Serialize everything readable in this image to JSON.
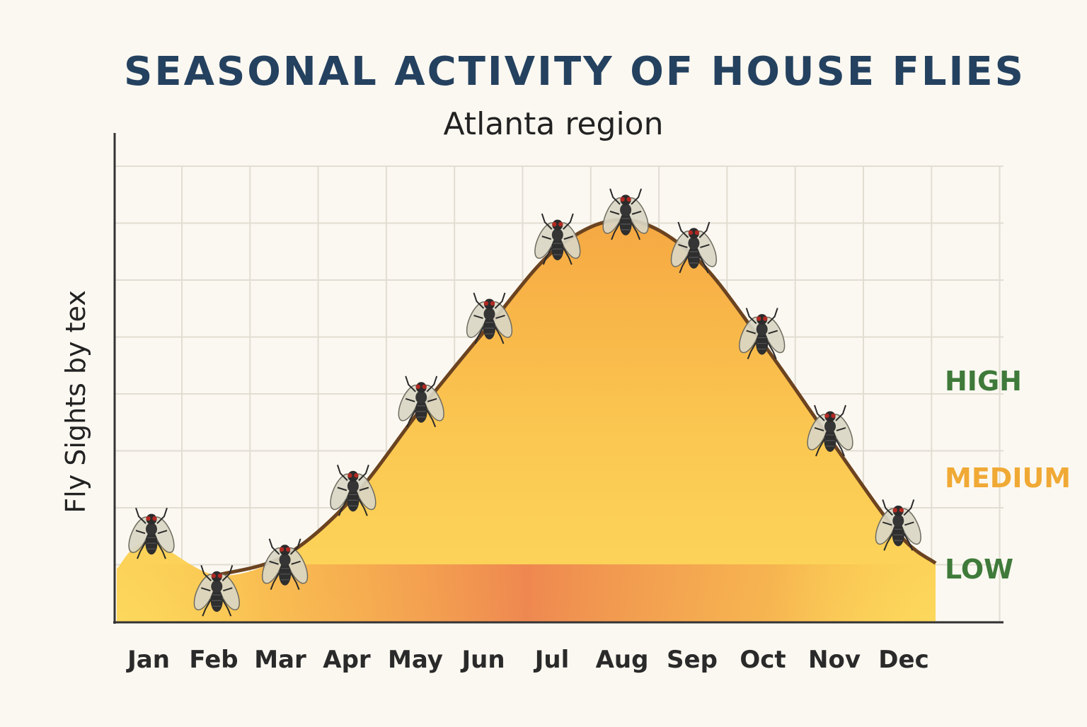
{
  "chart_data": {
    "type": "area",
    "title": "SEASONAL ACTIVITY OF HOUSE FLIES",
    "subtitle": "Atlanta region",
    "ylabel": "Fly Sights by tex",
    "xlabel": "",
    "categories": [
      "Jan",
      "Feb",
      "Mar",
      "Apr",
      "May",
      "Jun",
      "Jul",
      "Aug",
      "Sep",
      "Oct",
      "Nov",
      "Dec"
    ],
    "values": [
      1.45,
      0.85,
      1.2,
      2.25,
      3.85,
      5.35,
      6.75,
      7.25,
      6.6,
      5.05,
      3.3,
      1.6
    ],
    "ylim": [
      0,
      8.5
    ],
    "grid": true,
    "marker_icon": "fly-icon",
    "levels": [
      {
        "label": "HIGH",
        "color": "#3f7a3a"
      },
      {
        "label": "MEDIUM",
        "color": "#f0a935"
      },
      {
        "label": "LOW",
        "color": "#3f7a3a"
      }
    ],
    "colors": {
      "title": "#24415f",
      "curve": "#6b4320",
      "fill_top": "#f7b043",
      "fill_bottom": "#fcd75a",
      "band_peak": "#ec7a4f"
    }
  }
}
